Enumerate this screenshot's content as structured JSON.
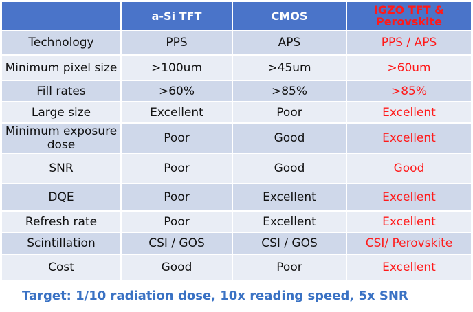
{
  "table": {
    "columns": [
      {
        "label": "",
        "highlight": false
      },
      {
        "label": "a-Si TFT",
        "highlight": false
      },
      {
        "label": "CMOS",
        "highlight": false
      },
      {
        "label": "IGZO TFT & Perovskite",
        "highlight": true
      }
    ],
    "rows": [
      {
        "label": "Technology",
        "cells": [
          "PPS",
          "APS",
          "PPS / APS"
        ]
      },
      {
        "label": "Minimum pixel size",
        "cells": [
          ">100um",
          ">45um",
          ">60um"
        ]
      },
      {
        "label": "Fill rates",
        "cells": [
          ">60%",
          ">85%",
          ">85%"
        ]
      },
      {
        "label": "Large size",
        "cells": [
          "Excellent",
          "Poor",
          "Excellent"
        ]
      },
      {
        "label": "Minimum exposure dose",
        "cells": [
          "Poor",
          "Good",
          "Excellent"
        ]
      },
      {
        "label": "SNR",
        "cells": [
          "Poor",
          "Good",
          "Good"
        ]
      },
      {
        "label": "DQE",
        "cells": [
          "Poor",
          "Excellent",
          "Excellent"
        ]
      },
      {
        "label": "Refresh rate",
        "cells": [
          "Poor",
          "Excellent",
          "Excellent"
        ]
      },
      {
        "label": "Scintillation",
        "cells": [
          "CSI / GOS",
          "CSI / GOS",
          "CSI/ Perovskite"
        ]
      },
      {
        "label": "Cost",
        "cells": [
          "Good",
          "Poor",
          "Excellent"
        ]
      }
    ]
  },
  "footer": {
    "target_text": "Target:  1/10 radiation dose, 10x reading speed, 5x SNR"
  }
}
